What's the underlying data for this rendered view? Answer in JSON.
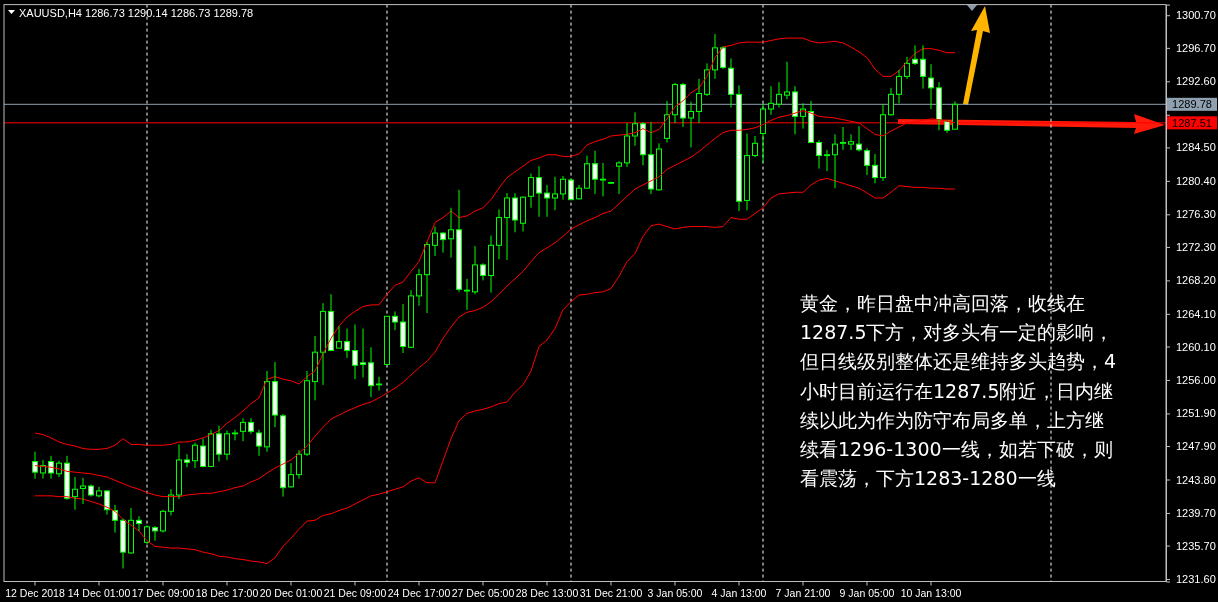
{
  "chart_data": {
    "type": "candlestick",
    "title": "XAUUSD,H4 1286.73 1290.14 1286.73 1289.78",
    "color": "#00ff00",
    "categories": [
      "12 Dec 2018",
      null,
      null,
      null,
      null,
      null,
      null,
      null,
      "14 Dec 01:00",
      null,
      null,
      null,
      null,
      null,
      null,
      null,
      "17 Dec 09:00",
      null,
      null,
      null,
      null,
      null,
      null,
      null,
      "18 Dec 17:00",
      null,
      null,
      null,
      null,
      null,
      null,
      null,
      "20 Dec 01:00",
      null,
      null,
      null,
      null,
      null,
      null,
      null,
      "21 Dec 09:00",
      null,
      null,
      null,
      null,
      null,
      null,
      null,
      "24 Dec 17:00",
      null,
      null,
      null,
      null,
      null,
      null,
      null,
      "27 Dec 05:00",
      null,
      null,
      null,
      null,
      null,
      null,
      null,
      "28 Dec 13:00",
      null,
      null,
      null,
      null,
      null,
      null,
      null,
      "31 Dec 21:00",
      null,
      null,
      null,
      null,
      null,
      null,
      null,
      "3 Jan 05:00",
      null,
      null,
      null,
      null,
      null,
      null,
      null,
      "4 Jan 13:00",
      null,
      null,
      null,
      null,
      null,
      null,
      null,
      "7 Jan 21:00",
      null,
      null,
      null,
      null,
      null,
      null,
      null,
      "9 Jan 05:00",
      null,
      null,
      null,
      null,
      null,
      null,
      null,
      "10 Jan 13:00",
      null,
      null,
      null,
      null,
      null,
      null,
      null,
      null,
      null,
      null,
      null,
      null,
      null,
      null,
      null,
      null,
      null,
      null,
      null,
      null,
      null,
      null,
      null,
      null,
      null,
      null,
      null,
      null,
      null
    ],
    "ohlc": [
      [
        1246.0,
        1247.2,
        1243.9,
        1244.7
      ],
      [
        1244.6,
        1246.2,
        1243.9,
        1245.5
      ],
      [
        1246.0,
        1246.7,
        1243.9,
        1244.6
      ],
      [
        1244.5,
        1246.1,
        1244.1,
        1245.8
      ],
      [
        1245.8,
        1246.7,
        1241.3,
        1241.5
      ],
      [
        1241.7,
        1244.1,
        1240.1,
        1242.6
      ],
      [
        1242.7,
        1244.0,
        1240.8,
        1243.0
      ],
      [
        1243.0,
        1243.2,
        1241.7,
        1241.9
      ],
      [
        1241.8,
        1242.9,
        1241.6,
        1242.4
      ],
      [
        1242.4,
        1242.5,
        1239.5,
        1240.1
      ],
      [
        1240.0,
        1240.7,
        1237.3,
        1238.8
      ],
      [
        1238.8,
        1239.0,
        1232.9,
        1234.9
      ],
      [
        1234.8,
        1240.3,
        1234.7,
        1238.8
      ],
      [
        1238.8,
        1239.3,
        1237.5,
        1238.4
      ],
      [
        1236.1,
        1238.2,
        1235.9,
        1238.0
      ],
      [
        1237.9,
        1238.1,
        1236.3,
        1237.5
      ],
      [
        1237.5,
        1240.1,
        1237.3,
        1239.9
      ],
      [
        1239.9,
        1242.6,
        1239.4,
        1241.9
      ],
      [
        1241.9,
        1248.1,
        1241.4,
        1246.2
      ],
      [
        1246.2,
        1246.9,
        1245.3,
        1245.9
      ],
      [
        1246.1,
        1248.3,
        1245.2,
        1248.0
      ],
      [
        1247.9,
        1248.8,
        1245.3,
        1245.4
      ],
      [
        1245.4,
        1249.9,
        1245.3,
        1249.4
      ],
      [
        1249.4,
        1250.4,
        1246.0,
        1246.9
      ],
      [
        1246.9,
        1249.8,
        1246.2,
        1249.4
      ],
      [
        1249.4,
        1249.9,
        1248.6,
        1249.5
      ],
      [
        1249.7,
        1251.3,
        1248.5,
        1250.8
      ],
      [
        1250.8,
        1251.3,
        1249.4,
        1249.7
      ],
      [
        1249.5,
        1249.9,
        1246.7,
        1247.9
      ],
      [
        1247.8,
        1257.1,
        1247.2,
        1255.8
      ],
      [
        1255.8,
        1258.2,
        1250.2,
        1251.7
      ],
      [
        1251.6,
        1251.8,
        1241.7,
        1242.8
      ],
      [
        1242.9,
        1245.8,
        1242.8,
        1244.4
      ],
      [
        1244.4,
        1247.4,
        1243.9,
        1246.9
      ],
      [
        1246.9,
        1257.1,
        1246.7,
        1255.9
      ],
      [
        1255.8,
        1261.4,
        1253.5,
        1259.4
      ],
      [
        1259.4,
        1265.4,
        1255.4,
        1264.4
      ],
      [
        1264.4,
        1266.5,
        1259.6,
        1259.6
      ],
      [
        1259.9,
        1262.6,
        1259.9,
        1260.7
      ],
      [
        1260.7,
        1262.3,
        1258.7,
        1259.6
      ],
      [
        1259.6,
        1262.8,
        1256.1,
        1257.8
      ],
      [
        1258.1,
        1262.3,
        1256.3,
        1257.9
      ],
      [
        1258.1,
        1260.0,
        1253.9,
        1255.3
      ],
      [
        1255.4,
        1256.4,
        1254.7,
        1255.5
      ],
      [
        1257.9,
        1263.8,
        1257.9,
        1263.8
      ],
      [
        1263.8,
        1264.4,
        1262.1,
        1263.1
      ],
      [
        1263.1,
        1265.3,
        1259.3,
        1260.1
      ],
      [
        1260.0,
        1267.0,
        1259.9,
        1266.3
      ],
      [
        1266.3,
        1269.6,
        1265.1,
        1268.9
      ],
      [
        1268.9,
        1272.9,
        1264.2,
        1272.6
      ],
      [
        1272.5,
        1274.8,
        1271.2,
        1274.0
      ],
      [
        1274.0,
        1274.1,
        1271.6,
        1273.2
      ],
      [
        1273.3,
        1277.1,
        1271.0,
        1274.4
      ],
      [
        1274.4,
        1279.3,
        1266.8,
        1267.1
      ],
      [
        1266.9,
        1268.4,
        1264.6,
        1267.0
      ],
      [
        1266.8,
        1272.4,
        1266.5,
        1270.1
      ],
      [
        1270.1,
        1270.3,
        1268.2,
        1268.8
      ],
      [
        1268.8,
        1273.7,
        1266.7,
        1272.5
      ],
      [
        1272.5,
        1276.9,
        1270.8,
        1275.9
      ],
      [
        1275.9,
        1278.9,
        1270.7,
        1278.3
      ],
      [
        1278.3,
        1278.9,
        1274.1,
        1275.6
      ],
      [
        1275.2,
        1278.5,
        1274.2,
        1278.4
      ],
      [
        1278.5,
        1281.3,
        1277.1,
        1280.8
      ],
      [
        1280.8,
        1282.2,
        1276.0,
        1278.9
      ],
      [
        1278.9,
        1279.9,
        1276.0,
        1278.3
      ],
      [
        1278.3,
        1280.9,
        1276.8,
        1278.8
      ],
      [
        1278.8,
        1281.0,
        1278.1,
        1280.6
      ],
      [
        1280.5,
        1280.7,
        1278.0,
        1278.1
      ],
      [
        1278.2,
        1279.9,
        1278.1,
        1279.5
      ],
      [
        1279.5,
        1283.5,
        1279.5,
        1282.5
      ],
      [
        1282.5,
        1284.1,
        1278.8,
        1280.6
      ],
      [
        1280.5,
        1282.6,
        1278.5,
        1280.6
      ],
      [
        1280.2,
        1280.3,
        1280.0,
        1280.2
      ],
      [
        1282.2,
        1282.8,
        1278.8,
        1282.6
      ],
      [
        1282.6,
        1287.5,
        1282.1,
        1285.9
      ],
      [
        1285.9,
        1288.8,
        1284.7,
        1287.4
      ],
      [
        1287.4,
        1287.6,
        1282.3,
        1283.6
      ],
      [
        1283.6,
        1287.6,
        1278.8,
        1279.4
      ],
      [
        1279.3,
        1285.0,
        1279.2,
        1284.3
      ],
      [
        1285.6,
        1290.2,
        1285.1,
        1288.5
      ],
      [
        1288.5,
        1292.4,
        1287.5,
        1292.2
      ],
      [
        1292.2,
        1292.4,
        1287.0,
        1288.1
      ],
      [
        1288.1,
        1290.1,
        1284.5,
        1288.9
      ],
      [
        1288.9,
        1292.9,
        1287.5,
        1291.1
      ],
      [
        1291.0,
        1294.8,
        1290.8,
        1294.0
      ],
      [
        1294.0,
        1298.4,
        1292.9,
        1296.7
      ],
      [
        1296.7,
        1296.9,
        1294.1,
        1294.3
      ],
      [
        1294.2,
        1295.4,
        1289.4,
        1291.0
      ],
      [
        1291.0,
        1292.1,
        1276.7,
        1277.9
      ],
      [
        1278.0,
        1286.2,
        1276.8,
        1283.5
      ],
      [
        1283.5,
        1285.9,
        1283.3,
        1285.0
      ],
      [
        1286.2,
        1289.9,
        1282.6,
        1289.2
      ],
      [
        1289.2,
        1292.0,
        1288.5,
        1289.9
      ],
      [
        1289.8,
        1292.5,
        1289.4,
        1291.0
      ],
      [
        1290.9,
        1295.0,
        1290.4,
        1291.3
      ],
      [
        1291.3,
        1292.0,
        1286.1,
        1288.3
      ],
      [
        1288.3,
        1289.9,
        1286.8,
        1289.2
      ],
      [
        1288.9,
        1290.2,
        1285.1,
        1285.1
      ],
      [
        1285.1,
        1285.4,
        1281.9,
        1283.5
      ],
      [
        1283.5,
        1284.2,
        1281.6,
        1283.6
      ],
      [
        1283.6,
        1286.1,
        1279.5,
        1284.9
      ],
      [
        1285.0,
        1287.0,
        1284.2,
        1285.1
      ],
      [
        1284.9,
        1286.1,
        1284.2,
        1285.2
      ],
      [
        1284.9,
        1287.1,
        1284.0,
        1284.2
      ],
      [
        1284.1,
        1284.4,
        1281.1,
        1282.3
      ],
      [
        1282.3,
        1283.7,
        1280.1,
        1280.8
      ],
      [
        1280.8,
        1289.8,
        1280.4,
        1288.5
      ],
      [
        1288.5,
        1291.8,
        1288.4,
        1291.0
      ],
      [
        1291.0,
        1294.0,
        1289.9,
        1293.2
      ],
      [
        1293.2,
        1295.6,
        1292.9,
        1294.8
      ],
      [
        1295.3,
        1297.0,
        1294.6,
        1294.8
      ],
      [
        1295.3,
        1297.0,
        1291.7,
        1293.2
      ],
      [
        1293.0,
        1294.7,
        1289.2,
        1291.8
      ],
      [
        1291.8,
        1292.5,
        1286.6,
        1287.9
      ],
      [
        1287.7,
        1287.7,
        1286.3,
        1286.6
      ],
      [
        1286.73,
        1290.14,
        1286.73,
        1289.78
      ],
      null,
      null,
      null,
      null,
      null,
      null,
      null,
      null,
      null,
      null,
      null,
      null,
      null,
      null,
      null,
      null,
      null,
      null,
      null,
      null,
      null,
      null,
      null,
      null,
      null,
      null
    ],
    "series": [
      {
        "type": "line",
        "color": "#ff0000",
        "values": [
          1249.5,
          1249.3,
          1248.9,
          1248.4,
          1248.1,
          1247.9,
          1247.6,
          1247.5,
          1247.5,
          1247.6,
          1248.0,
          1248.8,
          1248.1,
          1248.1,
          1248.0,
          1248.0,
          1248.0,
          1248.1,
          1248.4,
          1248.4,
          1248.6,
          1248.9,
          1249.3,
          1249.8,
          1250.7,
          1251.4,
          1252.2,
          1253.1,
          1253.8,
          1256.1,
          1256.4,
          1256.1,
          1255.9,
          1255.5,
          1256.4,
          1257.1,
          1259.2,
          1261.1,
          1262.6,
          1263.7,
          1264.4,
          1265.0,
          1265.2,
          1265.2,
          1266.5,
          1267.6,
          1268.0,
          1269.3,
          1270.5,
          1272.9,
          1275.3,
          1275.9,
          1276.7,
          1275.9,
          1276.1,
          1276.7,
          1277.1,
          1278.1,
          1279.5,
          1280.8,
          1281.5,
          1282.2,
          1282.9,
          1283.2,
          1283.6,
          1283.6,
          1283.4,
          1283.4,
          1283.7,
          1284.8,
          1285.2,
          1285.5,
          1285.9,
          1286.0,
          1286.1,
          1286.3,
          1286.8,
          1286.3,
          1286.7,
          1288.0,
          1289.5,
          1290.2,
          1291.2,
          1291.8,
          1293.2,
          1295.5,
          1296.8,
          1297.0,
          1297.3,
          1297.4,
          1297.4,
          1297.4,
          1297.6,
          1297.8,
          1297.9,
          1297.9,
          1297.9,
          1297.5,
          1297.3,
          1297.4,
          1297.5,
          1297.3,
          1296.8,
          1296.2,
          1295.5,
          1294.1,
          1293.2,
          1293.2,
          1293.9,
          1295.0,
          1296.0,
          1296.6,
          1296.6,
          1296.4,
          1296.1,
          1296.1,
          null,
          null,
          null,
          null,
          null,
          null,
          null,
          null,
          null,
          null,
          null,
          null,
          null,
          null,
          null,
          null,
          null,
          null,
          null,
          null,
          null,
          null,
          null,
          null,
          null,
          null
        ]
      },
      {
        "type": "line",
        "color": "#ff0000",
        "values": [
          1245.5,
          1245.4,
          1245.3,
          1245.1,
          1244.8,
          1244.7,
          1244.6,
          1244.5,
          1244.3,
          1244.1,
          1243.7,
          1243.3,
          1242.9,
          1242.6,
          1242.2,
          1241.9,
          1241.7,
          1241.7,
          1241.7,
          1241.9,
          1242.0,
          1242.1,
          1242.1,
          1242.3,
          1242.5,
          1242.8,
          1243.0,
          1243.5,
          1243.9,
          1244.6,
          1245.2,
          1245.7,
          1246.2,
          1247.0,
          1247.9,
          1249.1,
          1250.2,
          1251.2,
          1251.7,
          1252.2,
          1252.6,
          1253.0,
          1253.3,
          1253.8,
          1254.4,
          1255.0,
          1255.7,
          1256.6,
          1257.5,
          1258.3,
          1259.4,
          1261.1,
          1262.5,
          1263.7,
          1264.3,
          1264.5,
          1264.9,
          1265.6,
          1266.5,
          1267.5,
          1268.4,
          1269.3,
          1270.5,
          1271.6,
          1272.2,
          1272.8,
          1273.6,
          1274.5,
          1275.0,
          1275.5,
          1275.9,
          1276.4,
          1276.7,
          1277.6,
          1278.5,
          1279.4,
          1279.9,
          1280.4,
          1280.9,
          1281.8,
          1282.3,
          1282.8,
          1283.3,
          1284.0,
          1284.8,
          1285.6,
          1286.3,
          1286.6,
          1286.6,
          1286.7,
          1286.9,
          1287.3,
          1287.8,
          1288.2,
          1288.4,
          1288.7,
          1289.0,
          1288.7,
          1288.3,
          1288.2,
          1288.1,
          1287.9,
          1287.7,
          1287.5,
          1286.8,
          1286.1,
          1285.9,
          1286.5,
          1287.0,
          1287.5,
          1287.6,
          1287.8,
          1288.0,
          1287.9,
          1287.7,
          1287.5,
          null,
          null,
          null,
          null,
          null,
          null,
          null,
          null,
          null,
          null,
          null,
          null,
          null,
          null,
          null,
          null,
          null,
          null,
          null,
          null,
          null,
          null,
          null,
          null,
          null,
          null
        ]
      },
      {
        "type": "line",
        "color": "#ff0000",
        "values": [
          1241.8,
          1241.8,
          1241.8,
          1241.7,
          1241.7,
          1241.5,
          1241.4,
          1241.1,
          1240.8,
          1240.4,
          1239.9,
          1238.9,
          1238.2,
          1237.5,
          1236.3,
          1235.6,
          1235.5,
          1235.4,
          1235.4,
          1235.3,
          1235.2,
          1234.9,
          1234.7,
          1234.4,
          1234.3,
          1234.1,
          1234.0,
          1233.8,
          1233.7,
          1233.5,
          1234.2,
          1235.6,
          1236.6,
          1237.7,
          1238.7,
          1238.8,
          1239.4,
          1239.6,
          1240.0,
          1240.3,
          1240.8,
          1241.3,
          1241.8,
          1242.0,
          1242.3,
          1242.6,
          1242.9,
          1243.6,
          1244.0,
          1243.4,
          1243.4,
          1246.1,
          1248.8,
          1251.0,
          1251.9,
          1252.2,
          1252.4,
          1252.7,
          1253.1,
          1253.3,
          1254.5,
          1255.4,
          1257.1,
          1260.1,
          1260.9,
          1262.3,
          1264.6,
          1265.6,
          1266.4,
          1266.5,
          1266.7,
          1266.8,
          1267.2,
          1268.7,
          1270.5,
          1271.5,
          1273.6,
          1274.9,
          1275.1,
          1274.8,
          1274.5,
          1274.7,
          1274.8,
          1274.8,
          1274.8,
          1274.7,
          1274.8,
          1275.9,
          1275.7,
          1275.7,
          1276.4,
          1277.1,
          1278.3,
          1278.8,
          1278.9,
          1279.0,
          1279.0,
          1279.9,
          1280.5,
          1280.7,
          1280.4,
          1280.1,
          1279.8,
          1279.5,
          1278.9,
          1278.3,
          1278.3,
          1279.0,
          1279.8,
          1279.7,
          1279.6,
          1279.6,
          1279.5,
          1279.5,
          1279.4,
          1279.4,
          null,
          null,
          null,
          null,
          null,
          null,
          null,
          null,
          null,
          null,
          null,
          null,
          null,
          null,
          null,
          null,
          null,
          null,
          null,
          null,
          null,
          null,
          null,
          null,
          null,
          null
        ]
      }
    ],
    "ylim": [
      1231.3,
      1302.0
    ],
    "yticks": [
      {
        "value": 1231.6,
        "label": "1231.60"
      },
      {
        "value": 1235.7,
        "label": "1235.70"
      },
      {
        "value": 1239.7,
        "label": "1239.70"
      },
      {
        "value": 1243.8,
        "label": "1243.80"
      },
      {
        "value": 1247.9,
        "label": "1247.90"
      },
      {
        "value": 1251.9,
        "label": "1251.90"
      },
      {
        "value": 1256.0,
        "label": "1256.00"
      },
      {
        "value": 1260.1,
        "label": "1260.10"
      },
      {
        "value": 1264.1,
        "label": "1264.10"
      },
      {
        "value": 1268.2,
        "label": "1268.20"
      },
      {
        "value": 1272.3,
        "label": "1272.30"
      },
      {
        "value": 1276.3,
        "label": "1276.30"
      },
      {
        "value": 1280.4,
        "label": "1280.40"
      },
      {
        "value": 1284.5,
        "label": "1284.50"
      },
      {
        "value": 1288.5,
        "label": null
      },
      {
        "value": 1292.6,
        "label": "1292.60"
      },
      {
        "value": 1296.7,
        "label": "1296.70"
      },
      {
        "value": 1300.7,
        "label": "1300.70"
      }
    ],
    "ref_lines": [
      {
        "axis": "y",
        "value": 1289.78,
        "label": "1289.78",
        "color": "#8fa0b0",
        "line_style": "solid"
      },
      {
        "axis": "y",
        "value": 1287.51,
        "label": "1287.51",
        "color": "#ff0000",
        "line_style": "solid"
      }
    ],
    "annotations": [
      "黄金，昨日盘中冲高回落，收线在",
      "1287.5下方，对多头有一定的影响，",
      "但日线级别整体还是维持多头趋势，4",
      "小时目前运行在1287.5附近，日内继",
      "续以此为作为防守布局多单，上方继",
      "续看1296-1300一线，如若下破，则",
      "看震荡，下方1283-1280一线"
    ],
    "grid": false
  }
}
